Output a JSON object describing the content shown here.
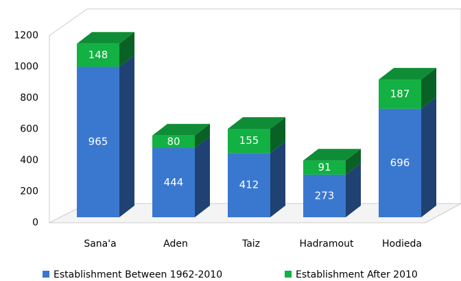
{
  "chart_data": {
    "type": "bar3d_stacked",
    "categories": [
      "Sana'a",
      "Aden",
      "Taiz",
      "Hadramout",
      "Hodieda"
    ],
    "series": [
      {
        "name": "Establishment Between 1962-2010",
        "color": "#3a78d0",
        "values": [
          965,
          444,
          412,
          273,
          696
        ]
      },
      {
        "name": "Establishment After 2010",
        "color": "#13b043",
        "values": [
          148,
          80,
          155,
          91,
          187
        ]
      }
    ],
    "ylim": [
      0,
      1200
    ],
    "yticks": [
      0,
      200,
      400,
      600,
      800,
      1000,
      1200
    ],
    "grid": false,
    "legend": "bottom"
  }
}
